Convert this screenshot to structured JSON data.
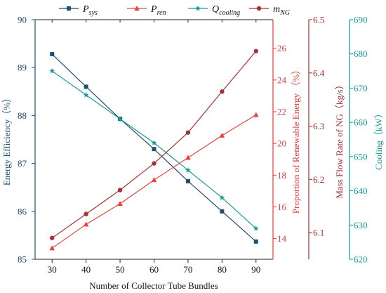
{
  "chart_data": {
    "type": "line",
    "x": [
      30,
      40,
      50,
      60,
      70,
      80,
      90
    ],
    "xlabel": "Number of Collector Tube Bundles",
    "xlim": [
      25,
      95
    ],
    "x_ticks": [
      "30",
      "40",
      "50",
      "60",
      "70",
      "80",
      "90"
    ],
    "grid": false,
    "legend_position": "top",
    "legend": [
      {
        "base": "P",
        "sub": "sys",
        "series": 0
      },
      {
        "base": "P",
        "sub": "ren",
        "series": 1
      },
      {
        "base": "Q",
        "sub": "cooling",
        "series": 2
      },
      {
        "base": "m",
        "sub": "NG",
        "series": 3
      }
    ],
    "axes": [
      {
        "id": "eff",
        "side": "left",
        "label": "Energy Efficiency（%）",
        "ylim": [
          85,
          90
        ],
        "ticks": [
          "85",
          "86",
          "87",
          "88",
          "89",
          "90"
        ],
        "color": "#1c4f73"
      },
      {
        "id": "ren",
        "side": "right",
        "label": "Proportion of Renewable Energy （%）",
        "ylim": [
          12.7,
          27.8
        ],
        "ticks": [
          "14",
          "16",
          "18",
          "20",
          "22",
          "24",
          "26"
        ],
        "color": "#e03c3c"
      },
      {
        "id": "ng",
        "side": "right",
        "label": "Mass Flow Rate of NG（kg/s）",
        "ylim": [
          6.05,
          6.5
        ],
        "ticks": [
          "6.1",
          "6.2",
          "6.3",
          "6.4",
          "6.5"
        ],
        "color": "#9e2c2c"
      },
      {
        "id": "cool",
        "side": "right",
        "label": "Cooling（kW）",
        "ylim": [
          620,
          690
        ],
        "ticks": [
          "620",
          "630",
          "640",
          "650",
          "660",
          "670",
          "680",
          "690"
        ],
        "color": "#12999a"
      }
    ],
    "series": [
      {
        "name": "P_sys",
        "axis": "eff",
        "marker": "square",
        "color": "#1f4e6e",
        "values": [
          89.28,
          88.6,
          87.93,
          87.3,
          86.63,
          86.0,
          85.37
        ]
      },
      {
        "name": "P_ren",
        "axis": "ren",
        "marker": "triangle",
        "color": "#e8413b",
        "values": [
          13.4,
          14.9,
          16.2,
          17.7,
          19.1,
          20.5,
          21.8
        ]
      },
      {
        "name": "Q_cooling",
        "axis": "cool",
        "marker": "star",
        "color": "#1a9a9a",
        "values": [
          675,
          668,
          661,
          654,
          646,
          638,
          629
        ]
      },
      {
        "name": "m_NG",
        "axis": "ng",
        "marker": "circle",
        "color": "#a23238",
        "values": [
          6.09,
          6.135,
          6.18,
          6.23,
          6.288,
          6.365,
          6.441
        ]
      }
    ]
  }
}
